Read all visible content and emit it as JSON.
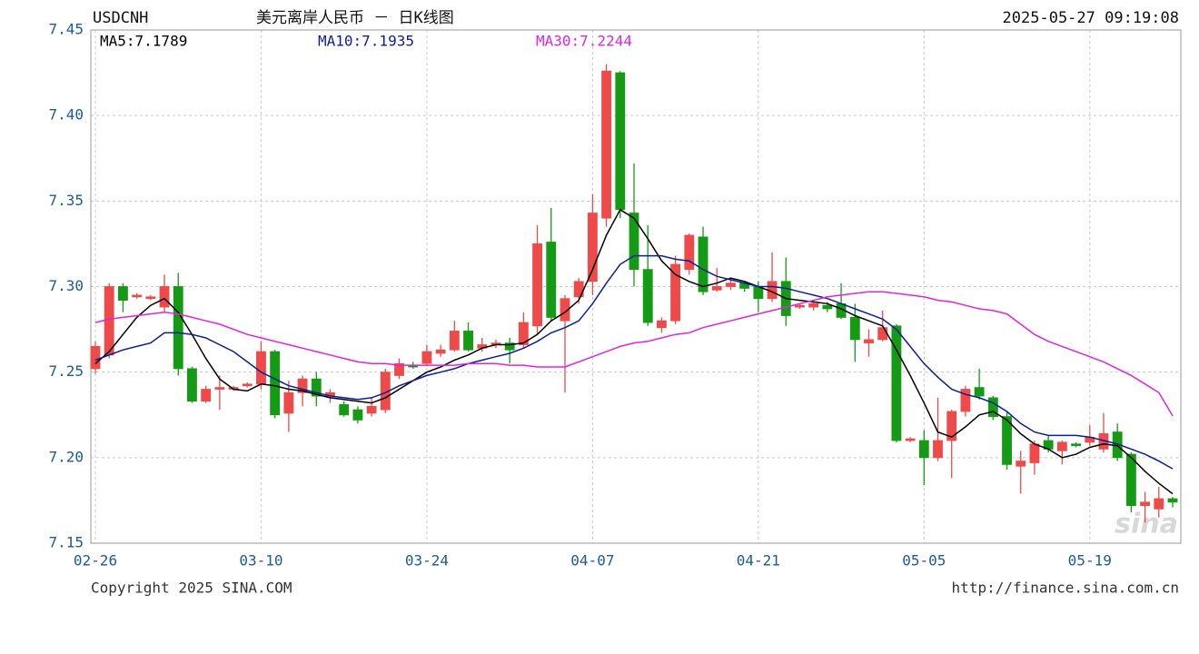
{
  "chart_data": {
    "type": "candlestick",
    "symbol": "USDCNH",
    "title": "美元离岸人民币 － 日K线图",
    "timestamp": "2025-05-27 09:19:08",
    "copyright": "Copyright 2025 SINA.COM",
    "source_url": "http://finance.sina.com.cn",
    "watermark": "sina",
    "grid": true,
    "up_color": "#ee4a4a",
    "down_color": "#149a14",
    "ylim": [
      7.15,
      7.45
    ],
    "yticks": [
      7.15,
      {
        "value": 7.2,
        "label": "7.20"
      },
      7.25,
      {
        "value": 7.3,
        "label": "7.30"
      },
      7.35,
      {
        "value": 7.4,
        "label": "7.40"
      },
      7.45
    ],
    "categories": [
      "02-26",
      null,
      null,
      null,
      null,
      null,
      null,
      null,
      null,
      null,
      null,
      null,
      "03-10",
      null,
      null,
      null,
      null,
      null,
      null,
      null,
      null,
      null,
      null,
      null,
      "03-24",
      null,
      null,
      null,
      null,
      null,
      null,
      null,
      null,
      null,
      null,
      null,
      "04-07",
      null,
      null,
      null,
      null,
      null,
      null,
      null,
      null,
      null,
      null,
      null,
      "04-21",
      null,
      null,
      null,
      null,
      null,
      null,
      null,
      null,
      null,
      null,
      null,
      "05-05",
      null,
      null,
      null,
      null,
      null,
      null,
      null,
      null,
      null,
      null,
      null,
      "05-19",
      null,
      null,
      null,
      null,
      null,
      null
    ],
    "open": [
      7.252,
      7.26,
      7.3,
      7.294,
      7.293,
      7.288,
      7.3,
      7.252,
      7.233,
      7.24,
      7.24,
      7.242,
      7.243,
      7.262,
      7.226,
      7.238,
      7.246,
      7.236,
      7.231,
      7.228,
      7.226,
      7.228,
      7.248,
      7.254,
      7.255,
      7.261,
      7.263,
      7.274,
      7.264,
      7.266,
      7.267,
      7.266,
      7.277,
      7.326,
      7.28,
      7.294,
      7.303,
      7.34,
      7.425,
      7.343,
      7.31,
      7.276,
      7.28,
      7.31,
      7.329,
      7.298,
      7.3,
      7.302,
      7.3,
      7.293,
      7.303,
      7.288,
      7.288,
      7.289,
      7.29,
      7.282,
      7.267,
      7.269,
      7.277,
      7.21,
      7.21,
      7.2,
      7.21,
      7.227,
      7.241,
      7.235,
      7.224,
      7.195,
      7.197,
      7.21,
      7.204,
      7.208,
      7.209,
      7.205,
      7.215,
      7.202,
      7.172,
      7.17,
      7.176
    ],
    "high": [
      7.268,
      7.302,
      7.302,
      7.296,
      7.295,
      7.307,
      7.308,
      7.253,
      7.242,
      7.248,
      7.242,
      7.244,
      7.268,
      7.263,
      7.245,
      7.248,
      7.25,
      7.24,
      7.233,
      7.23,
      7.235,
      7.252,
      7.258,
      7.256,
      7.266,
      7.266,
      7.28,
      7.279,
      7.27,
      7.269,
      7.27,
      7.285,
      7.336,
      7.346,
      7.295,
      7.305,
      7.354,
      7.43,
      7.426,
      7.372,
      7.336,
      7.282,
      7.318,
      7.331,
      7.335,
      7.311,
      7.305,
      7.303,
      7.303,
      7.32,
      7.317,
      7.29,
      7.291,
      7.291,
      7.302,
      7.29,
      7.275,
      7.286,
      7.278,
      7.212,
      7.216,
      7.235,
      7.228,
      7.242,
      7.252,
      7.236,
      7.227,
      7.204,
      7.21,
      7.213,
      7.21,
      7.209,
      7.219,
      7.226,
      7.22,
      7.203,
      7.18,
      7.183,
      7.177
    ],
    "low": [
      7.249,
      7.258,
      7.285,
      7.293,
      7.292,
      7.285,
      7.248,
      7.232,
      7.232,
      7.228,
      7.239,
      7.241,
      7.24,
      7.223,
      7.215,
      7.23,
      7.23,
      7.232,
      7.224,
      7.22,
      7.224,
      7.226,
      7.246,
      7.252,
      7.254,
      7.259,
      7.262,
      7.262,
      7.262,
      7.264,
      7.255,
      7.264,
      7.272,
      7.28,
      7.238,
      7.29,
      7.295,
      7.335,
      7.34,
      7.3,
      7.277,
      7.273,
      7.278,
      7.307,
      7.295,
      7.297,
      7.298,
      7.297,
      7.285,
      7.291,
      7.277,
      7.287,
      7.286,
      7.285,
      7.281,
      7.256,
      7.259,
      7.268,
      7.209,
      7.209,
      7.184,
      7.198,
      7.188,
      7.224,
      7.234,
      7.222,
      7.193,
      7.179,
      7.19,
      7.203,
      7.196,
      7.206,
      7.207,
      7.203,
      7.198,
      7.168,
      7.162,
      7.165,
      7.171
    ],
    "close": [
      7.265,
      7.3,
      7.292,
      7.295,
      7.294,
      7.3,
      7.252,
      7.233,
      7.24,
      7.241,
      7.241,
      7.243,
      7.262,
      7.225,
      7.238,
      7.246,
      7.236,
      7.238,
      7.225,
      7.222,
      7.23,
      7.25,
      7.255,
      7.253,
      7.262,
      7.263,
      7.274,
      7.263,
      7.266,
      7.267,
      7.263,
      7.279,
      7.325,
      7.282,
      7.293,
      7.303,
      7.343,
      7.426,
      7.345,
      7.31,
      7.279,
      7.28,
      7.313,
      7.33,
      7.297,
      7.3,
      7.302,
      7.299,
      7.293,
      7.303,
      7.283,
      7.289,
      7.29,
      7.287,
      7.282,
      7.269,
      7.269,
      7.276,
      7.21,
      7.211,
      7.2,
      7.21,
      7.227,
      7.24,
      7.236,
      7.224,
      7.196,
      7.198,
      7.208,
      7.205,
      7.209,
      7.207,
      7.212,
      7.214,
      7.2,
      7.172,
      7.174,
      7.176,
      7.174
    ],
    "series": [
      {
        "name": "MA5:7.1789",
        "color": "#000000",
        "values": [
          7.255,
          7.262,
          7.272,
          7.282,
          7.289,
          7.293,
          7.285,
          7.272,
          7.258,
          7.246,
          7.24,
          7.239,
          7.243,
          7.242,
          7.24,
          7.239,
          7.237,
          7.235,
          7.234,
          7.233,
          7.232,
          7.235,
          7.24,
          7.245,
          7.25,
          7.253,
          7.257,
          7.26,
          7.264,
          7.266,
          7.266,
          7.267,
          7.272,
          7.28,
          7.285,
          7.292,
          7.31,
          7.33,
          7.345,
          7.34,
          7.328,
          7.315,
          7.307,
          7.303,
          7.3,
          7.302,
          7.305,
          7.303,
          7.3,
          7.297,
          7.293,
          7.292,
          7.291,
          7.29,
          7.287,
          7.283,
          7.28,
          7.277,
          7.263,
          7.248,
          7.232,
          7.215,
          7.212,
          7.218,
          7.225,
          7.227,
          7.222,
          7.214,
          7.208,
          7.205,
          7.2,
          7.202,
          7.206,
          7.208,
          7.207,
          7.2,
          7.192,
          7.185,
          7.1789
        ]
      },
      {
        "name": "MA10:7.1935",
        "color": "#0a1e9c",
        "values": [
          7.257,
          7.26,
          7.263,
          7.265,
          7.267,
          7.273,
          7.273,
          7.272,
          7.27,
          7.266,
          7.262,
          7.256,
          7.25,
          7.246,
          7.242,
          7.24,
          7.238,
          7.236,
          7.235,
          7.234,
          7.235,
          7.238,
          7.242,
          7.245,
          7.248,
          7.25,
          7.252,
          7.255,
          7.257,
          7.259,
          7.261,
          7.264,
          7.268,
          7.273,
          7.276,
          7.28,
          7.29,
          7.302,
          7.313,
          7.318,
          7.318,
          7.318,
          7.316,
          7.315,
          7.31,
          7.306,
          7.304,
          7.302,
          7.3,
          7.3,
          7.299,
          7.297,
          7.295,
          7.293,
          7.29,
          7.287,
          7.284,
          7.281,
          7.275,
          7.265,
          7.255,
          7.247,
          7.24,
          7.237,
          7.235,
          7.232,
          7.227,
          7.22,
          7.215,
          7.213,
          7.213,
          7.213,
          7.212,
          7.21,
          7.208,
          7.205,
          7.202,
          7.198,
          7.1935
        ]
      },
      {
        "name": "MA30:7.2244",
        "color": "#e024e0",
        "values": [
          7.279,
          7.281,
          7.282,
          7.283,
          7.284,
          7.285,
          7.284,
          7.282,
          7.28,
          7.278,
          7.275,
          7.272,
          7.27,
          7.268,
          7.266,
          7.264,
          7.262,
          7.26,
          7.258,
          7.256,
          7.255,
          7.255,
          7.254,
          7.254,
          7.254,
          7.254,
          7.254,
          7.255,
          7.255,
          7.255,
          7.254,
          7.254,
          7.253,
          7.253,
          7.253,
          7.256,
          7.259,
          7.262,
          7.265,
          7.267,
          7.268,
          7.27,
          7.272,
          7.273,
          7.276,
          7.278,
          7.28,
          7.282,
          7.284,
          7.286,
          7.288,
          7.29,
          7.292,
          7.294,
          7.295,
          7.296,
          7.297,
          7.297,
          7.296,
          7.295,
          7.294,
          7.292,
          7.291,
          7.289,
          7.287,
          7.286,
          7.284,
          7.278,
          7.272,
          7.268,
          7.265,
          7.262,
          7.259,
          7.256,
          7.252,
          7.248,
          7.243,
          7.238,
          7.2244
        ]
      }
    ]
  }
}
